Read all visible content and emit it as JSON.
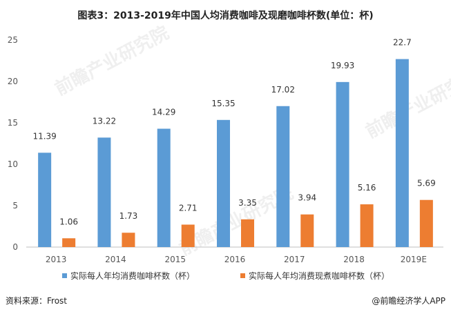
{
  "title": "图表3：2013-2019年中国人均消费咖啡及现磨咖啡杯数(单位：杯)",
  "source": "资料来源：Frost",
  "brand": "@前瞻经济学人APP",
  "watermark": "前瞻产业研究院",
  "chart_data": {
    "type": "bar",
    "categories": [
      "2013",
      "2014",
      "2015",
      "2016",
      "2017",
      "2018",
      "2019E"
    ],
    "series": [
      {
        "name": "实际每人年均消费咖啡杯数（杯）",
        "color": "#5b9bd5",
        "values": [
          11.39,
          13.22,
          14.29,
          15.35,
          17.02,
          19.93,
          22.7
        ],
        "labels": [
          "11.39",
          "13.22",
          "14.29",
          "15.35",
          "17.02",
          "19.93",
          "22.7"
        ]
      },
      {
        "name": "实际每人年均消费现煮咖啡杯数（杯）",
        "color": "#ed7d31",
        "values": [
          1.06,
          1.73,
          2.71,
          3.35,
          3.94,
          5.16,
          5.69
        ],
        "labels": [
          "1.06",
          "1.73",
          "2.71",
          "3.35",
          "3.94",
          "5.16",
          "5.69"
        ]
      }
    ],
    "y_ticks": [
      "0",
      "5",
      "10",
      "15",
      "20",
      "25"
    ],
    "ylim": [
      0,
      25
    ],
    "grid": false,
    "legend_position": "bottom"
  }
}
